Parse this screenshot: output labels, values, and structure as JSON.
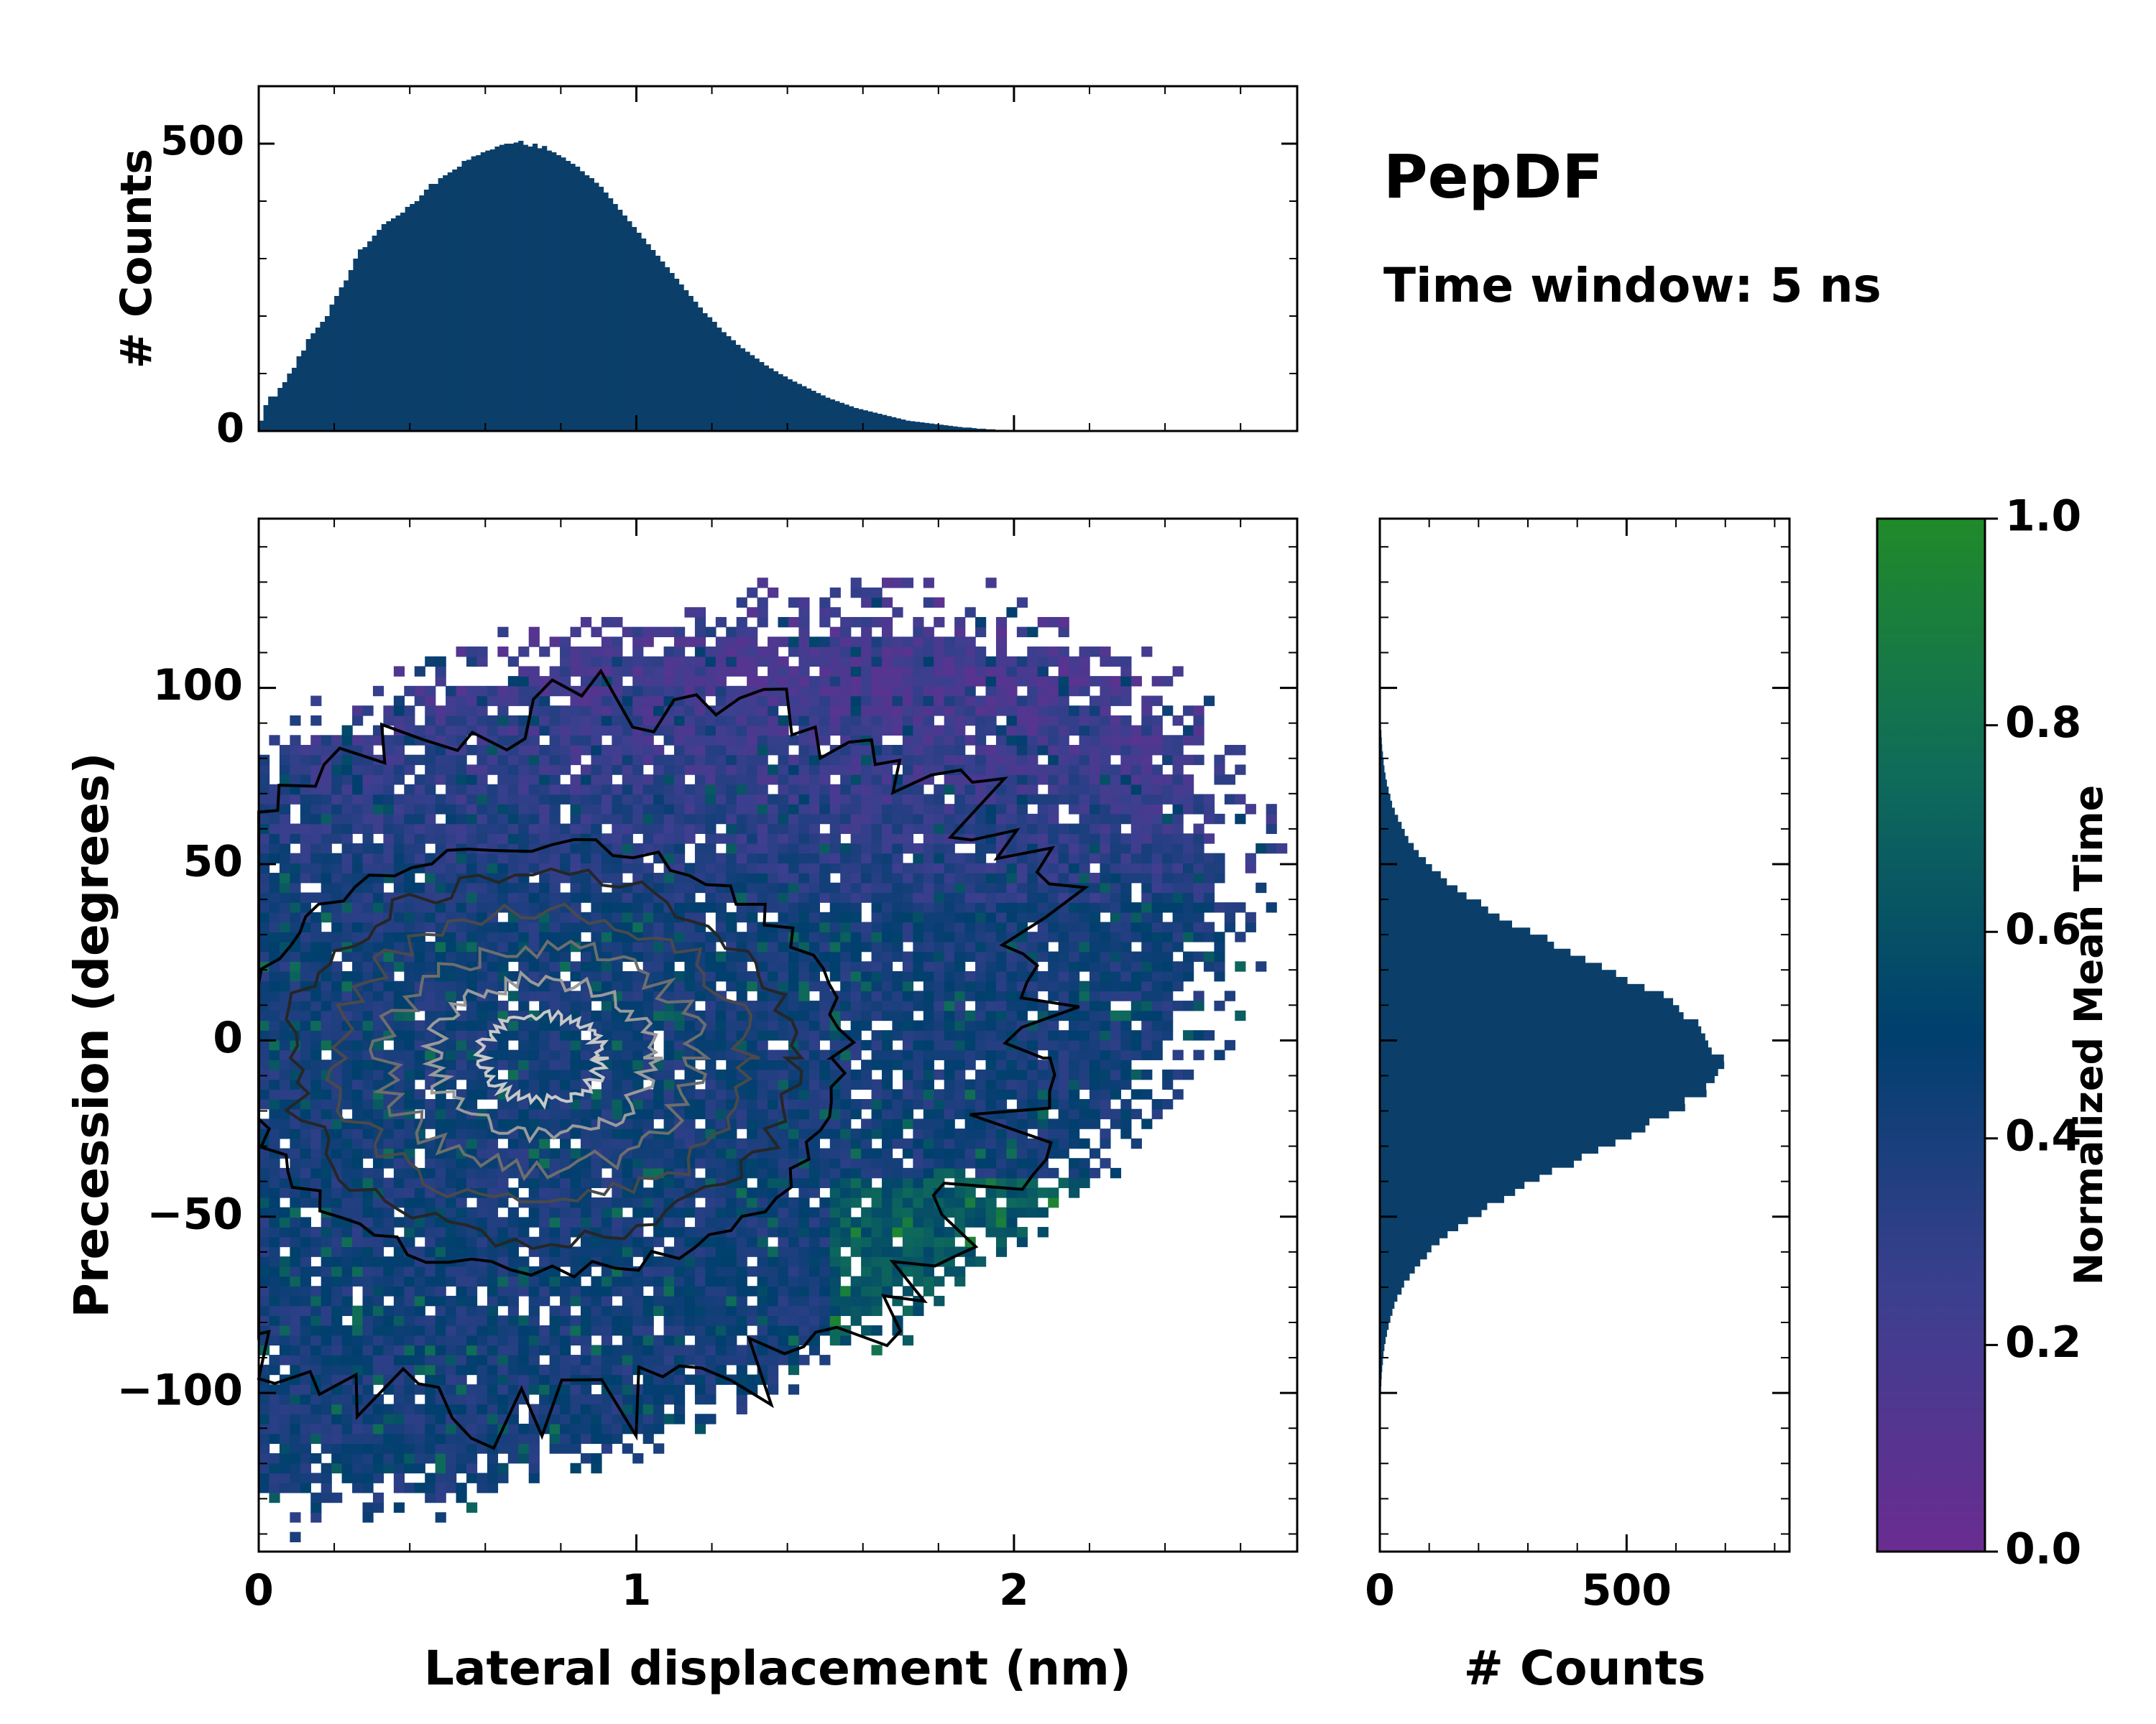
{
  "chart_data": [
    {
      "id": "top_histogram",
      "type": "bar",
      "title": "",
      "xlabel": "",
      "ylabel": "# Counts",
      "xlim": [
        0,
        2.75
      ],
      "ylim": [
        0,
        600
      ],
      "yticks": [
        0,
        500
      ],
      "bin_width": 0.0125,
      "x_start": 0.0,
      "values": [
        18,
        45,
        60,
        60,
        75,
        85,
        100,
        110,
        130,
        140,
        160,
        170,
        180,
        190,
        200,
        220,
        235,
        250,
        262,
        280,
        300,
        316,
        320,
        330,
        340,
        350,
        360,
        365,
        370,
        375,
        380,
        390,
        395,
        400,
        410,
        420,
        430,
        430,
        440,
        445,
        450,
        455,
        460,
        470,
        472,
        478,
        480,
        485,
        488,
        490,
        495,
        498,
        500,
        500,
        502,
        505,
        498,
        495,
        500,
        492,
        496,
        488,
        485,
        480,
        476,
        470,
        465,
        460,
        452,
        445,
        440,
        432,
        425,
        415,
        405,
        395,
        385,
        375,
        365,
        355,
        345,
        335,
        325,
        315,
        305,
        295,
        285,
        275,
        265,
        255,
        245,
        235,
        225,
        215,
        205,
        198,
        190,
        180,
        172,
        165,
        158,
        150,
        144,
        138,
        132,
        126,
        120,
        114,
        109,
        104,
        99,
        95,
        90,
        86,
        82,
        78,
        74,
        70,
        66,
        62,
        58,
        55,
        52,
        49,
        46,
        43,
        40,
        38,
        36,
        34,
        32,
        30,
        28,
        26,
        24,
        22,
        20,
        18,
        17,
        16,
        15,
        14,
        13,
        12,
        11,
        10,
        9,
        8,
        7,
        6,
        6,
        5,
        4,
        4,
        3,
        3,
        2,
        2,
        2,
        1,
        1,
        1,
        1,
        1,
        0,
        0,
        0,
        0,
        0,
        0,
        0,
        0,
        0,
        0,
        0,
        0,
        0,
        0,
        0,
        0,
        0,
        0,
        0,
        0,
        0,
        0,
        0,
        0,
        0,
        0,
        0,
        0,
        0,
        0,
        0,
        0,
        0,
        0,
        0,
        0,
        0,
        0,
        0,
        0,
        0,
        0,
        0,
        0,
        0,
        0,
        0,
        0,
        0,
        0,
        0,
        0,
        0,
        0,
        0,
        0
      ],
      "color": "#0b3f6a"
    },
    {
      "id": "main_heatmap",
      "type": "heatmap",
      "title": "",
      "xlabel": "Lateral displacement (nm)",
      "ylabel": "Precession (degrees)",
      "xlim": [
        0,
        2.75
      ],
      "ylim": [
        -145,
        148
      ],
      "xticks": [
        0,
        1,
        2
      ],
      "yticks": [
        -100,
        -50,
        0,
        50,
        100
      ],
      "density_center": [
        0.75,
        -5
      ],
      "density_spread": [
        0.55,
        42
      ],
      "contour_levels": 6,
      "contour_colors": [
        "#000000",
        "#262626",
        "#4a4a4a",
        "#6e6e6e",
        "#9a9a9a",
        "#c8c8c8"
      ],
      "colormap": [
        "#6a2c91",
        "#3c3f8f",
        "#003f6e",
        "#0f6b5a",
        "#218a2a"
      ]
    },
    {
      "id": "right_histogram",
      "type": "bar",
      "orientation": "horizontal",
      "title": "",
      "xlabel": "# Counts",
      "ylabel": "",
      "xlim": [
        0,
        830
      ],
      "ylim": [
        -145,
        148
      ],
      "xticks": [
        0,
        500
      ],
      "center": -5,
      "sigma": 28,
      "peak": 690,
      "color": "#0b3f6a"
    },
    {
      "id": "colorbar",
      "type": "colorbar",
      "label": "Normalized Mean Time",
      "range": [
        0.0,
        1.0
      ],
      "ticks": [
        "0.0",
        "0.2",
        "0.4",
        "0.6",
        "0.8",
        "1.0"
      ],
      "colors": [
        "#6a2c91",
        "#3c3f8f",
        "#003f6e",
        "#0f6b5a",
        "#218a2a"
      ]
    }
  ],
  "annotations": {
    "title": "PepDF",
    "subtitle": "Time window: 5 ns"
  }
}
